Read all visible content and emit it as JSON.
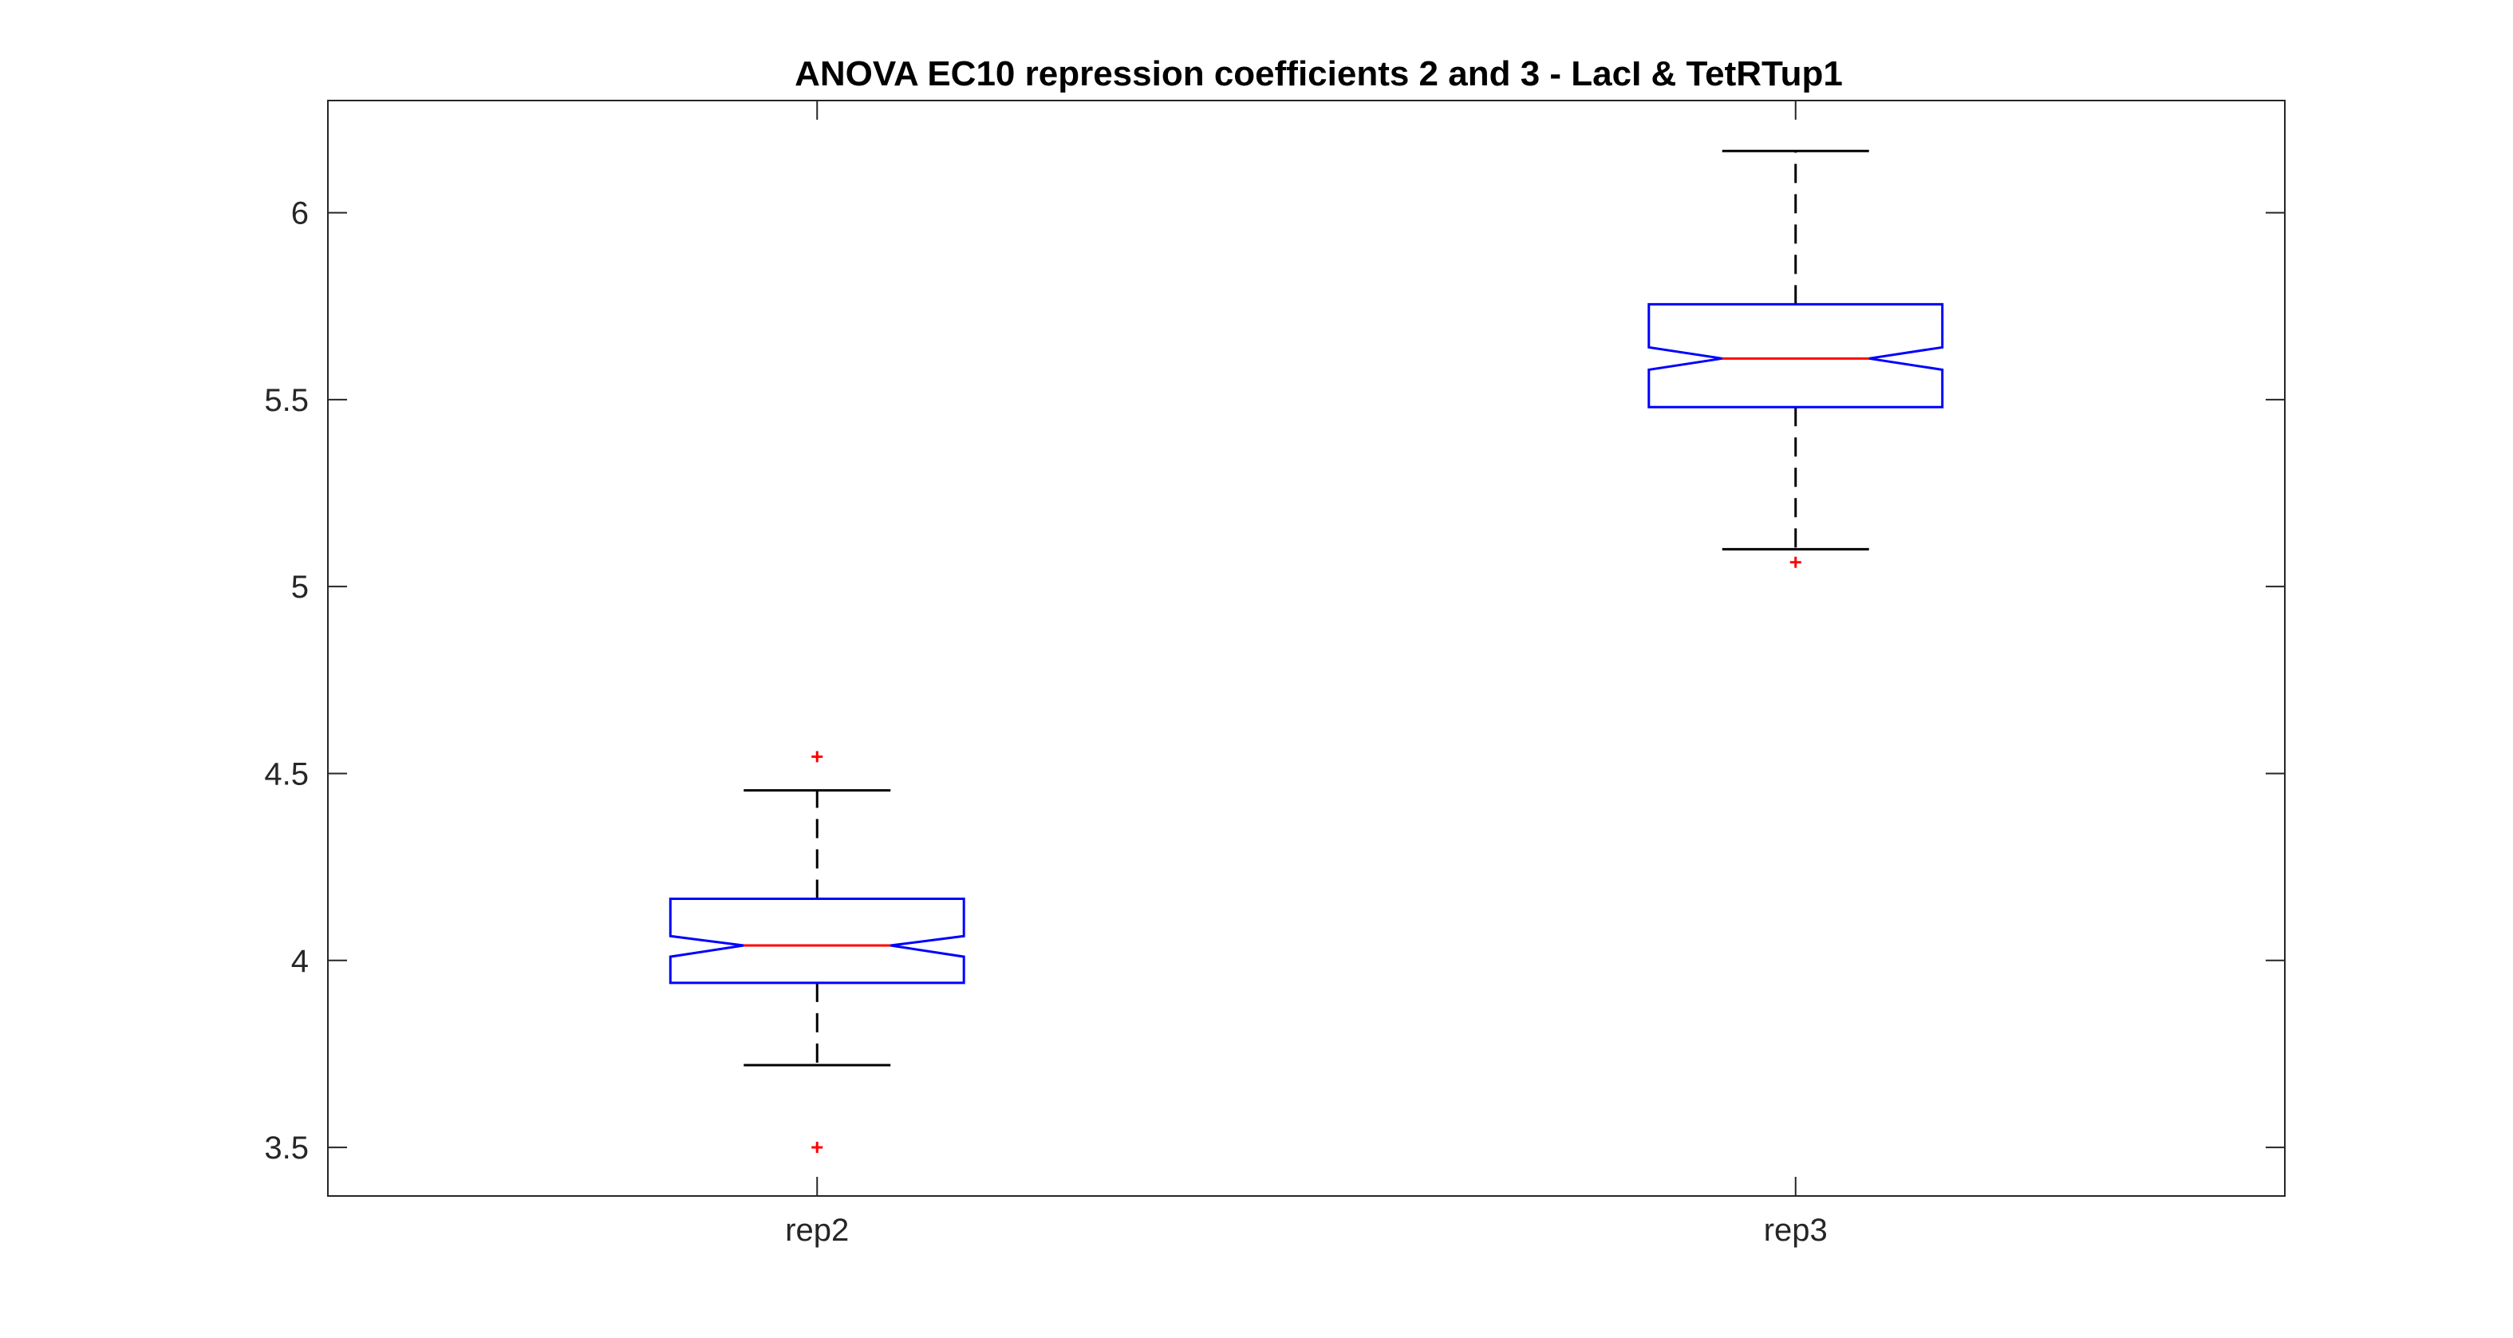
{
  "chart_data": {
    "type": "box",
    "title": "ANOVA EC10 repression coefficients 2 and 3 - LacI & TetRTup1",
    "xlabel": "",
    "ylabel": "",
    "ylim": [
      3.37,
      6.3
    ],
    "yticks": [
      "3.5",
      "4",
      "4.5",
      "5",
      "5.5",
      "6"
    ],
    "grid": false,
    "notched": true,
    "categories": [
      "rep2",
      "rep3"
    ],
    "boxes": [
      {
        "category": "rep2",
        "whisker_low": 3.72,
        "q1": 3.94,
        "notch_low": 4.01,
        "median": 4.04,
        "notch_high": 4.065,
        "q3": 4.165,
        "whisker_high": 4.455,
        "outliers": [
          3.5,
          4.545
        ]
      },
      {
        "category": "rep3",
        "whisker_low": 5.1,
        "q1": 5.48,
        "notch_low": 5.58,
        "median": 5.61,
        "notch_high": 5.64,
        "q3": 5.755,
        "whisker_high": 6.165,
        "outliers": [
          5.065
        ]
      }
    ],
    "colors": {
      "box": "#0000ff",
      "median": "#ff0000",
      "whisker": "#000000",
      "outlier": "#ff0000",
      "axes": "#262626"
    }
  }
}
